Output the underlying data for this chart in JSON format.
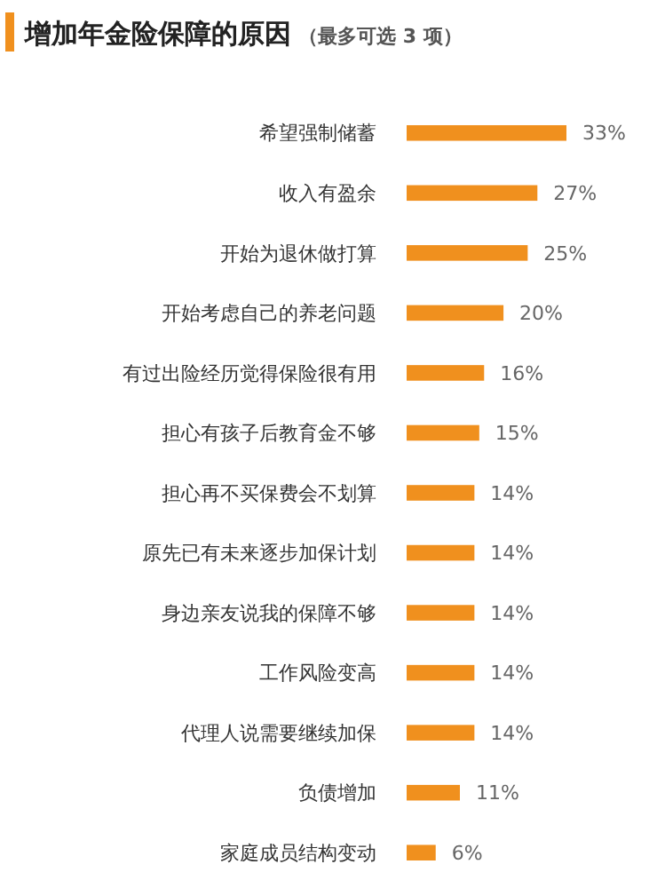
{
  "chart_data": {
    "type": "bar",
    "orientation": "horizontal",
    "title": "增加年金险保障的原因",
    "subtitle": "（最多可选 3 项）",
    "categories": [
      "希望强制储蓄",
      "收入有盈余",
      "开始为退休做打算",
      "开始考虑自己的养老问题",
      "有过出险经历觉得保险很有用",
      "担心有孩子后教育金不够",
      "担心再不买保费会不划算",
      "原先已有未来逐步加保计划",
      "身边亲友说我的保障不够",
      "工作风险变高",
      "代理人说需要继续加保",
      "负债增加",
      "家庭成员结构变动"
    ],
    "values": [
      33,
      27,
      25,
      20,
      16,
      15,
      14,
      14,
      14,
      14,
      14,
      11,
      6
    ],
    "value_labels": [
      "33%",
      "27%",
      "25%",
      "20%",
      "16%",
      "15%",
      "14%",
      "14%",
      "14%",
      "14%",
      "14%",
      "11%",
      "6%"
    ],
    "color": "#f0901e"
  }
}
